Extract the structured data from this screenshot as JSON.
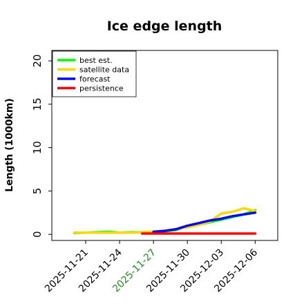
{
  "chart_data": {
    "type": "line",
    "title": "Ice edge length",
    "xlabel": "",
    "ylabel": "Length (1000km)",
    "ylim": [
      -0.7,
      21.2
    ],
    "xlim": [
      "2025-11-18",
      "2025-12-08"
    ],
    "yticks": [
      0,
      5,
      10,
      15,
      20
    ],
    "xticks": [
      {
        "date": "2025-11-21",
        "label": "2025-11-21",
        "color": "#000000"
      },
      {
        "date": "2025-11-24",
        "label": "2025-11-24",
        "color": "#000000"
      },
      {
        "date": "2025-11-27",
        "label": "2025-11-27",
        "color": "#228B22"
      },
      {
        "date": "2025-11-30",
        "label": "2025-11-30",
        "color": "#000000"
      },
      {
        "date": "2025-12-03",
        "label": "2025-12-03",
        "color": "#000000"
      },
      {
        "date": "2025-12-06",
        "label": "2025-12-06",
        "color": "#000000"
      }
    ],
    "legend_position": "top-left",
    "grid": false,
    "series": [
      {
        "name": "best est.",
        "color": "#00ff00",
        "points": [
          [
            "2025-11-20",
            0.15
          ],
          [
            "2025-11-21",
            0.2
          ],
          [
            "2025-11-22",
            0.25
          ],
          [
            "2025-11-23",
            0.3
          ],
          [
            "2025-11-24",
            0.2
          ],
          [
            "2025-11-25",
            0.25
          ],
          [
            "2025-11-26",
            0.25
          ],
          [
            "2025-11-27",
            0.3
          ],
          [
            "2025-11-28",
            0.35
          ],
          [
            "2025-11-29",
            0.5
          ],
          [
            "2025-11-30",
            0.9
          ],
          [
            "2025-12-01",
            1.1
          ],
          [
            "2025-12-02",
            1.4
          ],
          [
            "2025-12-03",
            1.7
          ],
          [
            "2025-12-04",
            2.0
          ],
          [
            "2025-12-05",
            2.3
          ],
          [
            "2025-12-06",
            2.8
          ]
        ]
      },
      {
        "name": "satellite data",
        "color": "#ffd700",
        "points": [
          [
            "2025-11-20",
            0.2
          ],
          [
            "2025-11-21",
            0.2
          ],
          [
            "2025-11-22",
            0.2
          ],
          [
            "2025-11-23",
            0.2
          ],
          [
            "2025-11-24",
            0.2
          ],
          [
            "2025-11-25",
            0.2
          ],
          [
            "2025-11-26",
            0.25
          ],
          [
            "2025-11-27",
            0.3
          ],
          [
            "2025-11-28",
            0.45
          ],
          [
            "2025-11-29",
            0.6
          ],
          [
            "2025-11-30",
            0.8
          ],
          [
            "2025-12-01",
            1.1
          ],
          [
            "2025-12-02",
            1.5
          ],
          [
            "2025-12-03",
            2.4
          ],
          [
            "2025-12-04",
            2.6
          ],
          [
            "2025-12-05",
            3.0
          ],
          [
            "2025-12-06",
            2.7
          ]
        ]
      },
      {
        "name": "forecast",
        "color": "#0000ff",
        "points": [
          [
            "2025-11-27",
            0.3
          ],
          [
            "2025-11-28",
            0.4
          ],
          [
            "2025-11-29",
            0.6
          ],
          [
            "2025-11-30",
            1.0
          ],
          [
            "2025-12-01",
            1.3
          ],
          [
            "2025-12-02",
            1.6
          ],
          [
            "2025-12-03",
            1.8
          ],
          [
            "2025-12-04",
            2.1
          ],
          [
            "2025-12-05",
            2.3
          ],
          [
            "2025-12-06",
            2.5
          ]
        ]
      },
      {
        "name": "persistence",
        "color": "#ff0000",
        "points": [
          [
            "2025-11-26",
            0.1
          ],
          [
            "2025-12-06",
            0.1
          ]
        ]
      }
    ]
  }
}
